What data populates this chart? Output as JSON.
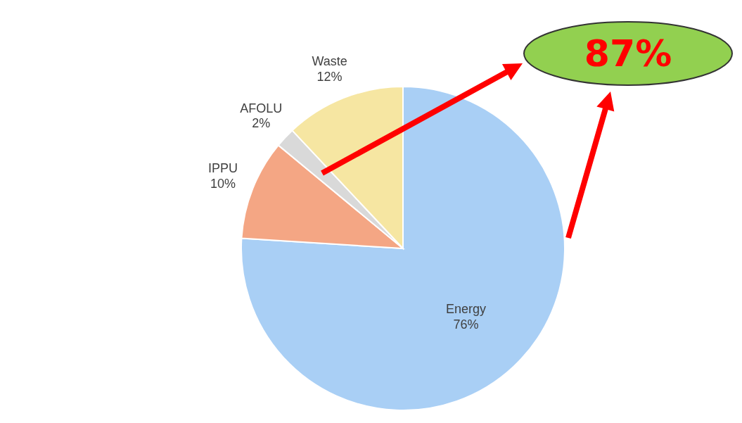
{
  "chart_data": {
    "type": "pie",
    "categories": [
      "Energy",
      "IPPU",
      "AFOLU",
      "Waste"
    ],
    "values": [
      76,
      10,
      2,
      12
    ],
    "colors": [
      "#a9cff5",
      "#f4a684",
      "#d9d9d9",
      "#f6e6a2"
    ],
    "value_labels": [
      "76%",
      "10%",
      "2%",
      "12%"
    ],
    "annotations": [
      "87%"
    ]
  }
}
